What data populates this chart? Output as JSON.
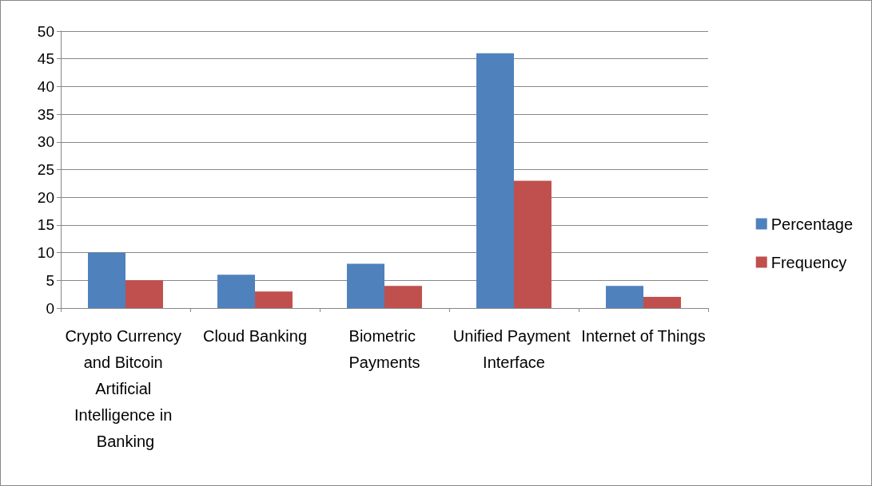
{
  "chart_data": {
    "type": "bar",
    "categories": [
      "Crypto Currency and Bitcoin Artificial Intelligence in Banking",
      "Cloud Banking",
      "Biometric Payments",
      "Unified Payment Interface",
      "Internet of Things"
    ],
    "series": [
      {
        "name": "Percentage",
        "color": "#4f81bd",
        "values": [
          10,
          6,
          8,
          46,
          4
        ]
      },
      {
        "name": "Frequency",
        "color": "#c0504d",
        "values": [
          5,
          3,
          4,
          23,
          2
        ]
      }
    ],
    "ylim": [
      0,
      50
    ],
    "yticks": [
      0,
      5,
      10,
      15,
      20,
      25,
      30,
      35,
      40,
      45,
      50
    ],
    "grid": "y",
    "legend": "right"
  }
}
